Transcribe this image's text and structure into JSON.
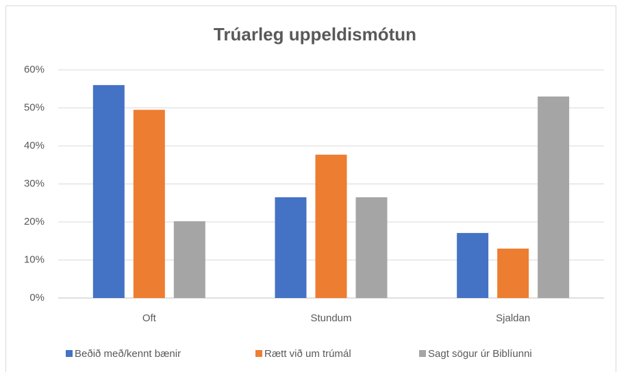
{
  "chart_data": {
    "type": "bar",
    "title": "Trúarleg uppeldismótun",
    "categories": [
      "Oft",
      "Stundum",
      "Sjaldan"
    ],
    "series": [
      {
        "name": "Beðið með/kennt bænir",
        "color": "#4472c4",
        "values": [
          56,
          26.5,
          17.1
        ]
      },
      {
        "name": "Rætt við um trúmál",
        "color": "#ed7d31",
        "values": [
          49.5,
          37.7,
          13
        ]
      },
      {
        "name": "Sagt sögur úr Biblíunni",
        "color": "#a5a5a5",
        "values": [
          20.2,
          26.5,
          53
        ]
      }
    ],
    "ylim": [
      0,
      60
    ],
    "yticks": [
      {
        "value": 0,
        "label": "0%"
      },
      {
        "value": 10,
        "label": "10%"
      },
      {
        "value": 20,
        "label": "20%"
      },
      {
        "value": 30,
        "label": "30%"
      },
      {
        "value": 40,
        "label": "40%"
      },
      {
        "value": 50,
        "label": "50%"
      },
      {
        "value": 60,
        "label": "60%"
      }
    ],
    "grid": true,
    "legend": "bottom"
  }
}
